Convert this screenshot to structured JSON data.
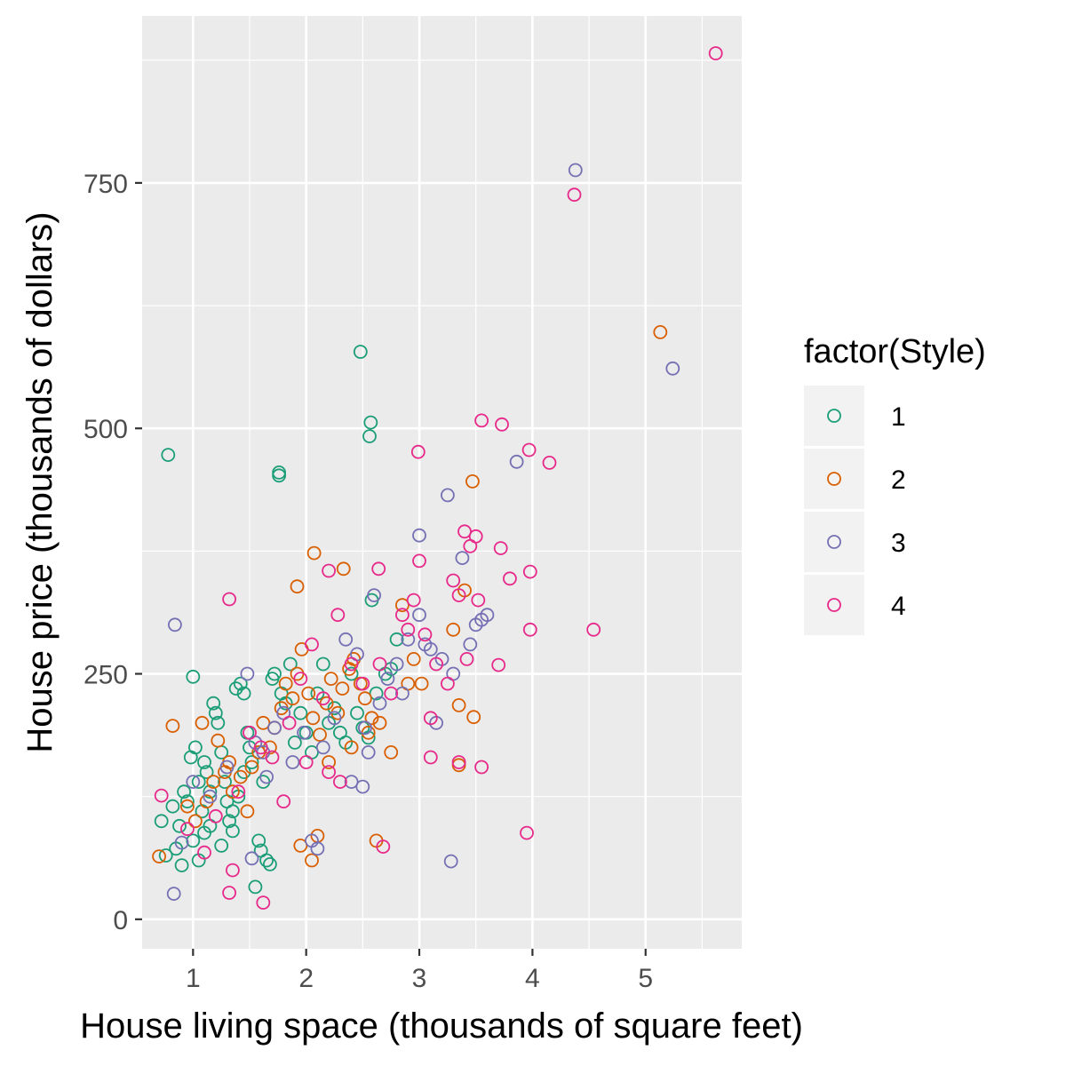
{
  "chart_data": {
    "type": "scatter",
    "xlabel": "House living space (thousands of square feet)",
    "ylabel": "House price (thousands of dollars)",
    "xlim": [
      0.55,
      5.85
    ],
    "ylim": [
      -30,
      920
    ],
    "x_ticks": [
      1,
      2,
      3,
      4,
      5
    ],
    "y_ticks": [
      0,
      250,
      500,
      750
    ],
    "grid": true,
    "legend": {
      "title": "factor(Style)",
      "position": "right"
    },
    "series": [
      {
        "name": "1",
        "color": "#1b9e77",
        "points": [
          [
            0.78,
            473
          ],
          [
            2.48,
            578
          ],
          [
            2.57,
            506
          ],
          [
            2.56,
            492
          ],
          [
            1.76,
            455
          ],
          [
            1.76,
            452
          ],
          [
            1.0,
            247
          ],
          [
            0.72,
            100
          ],
          [
            0.76,
            65
          ],
          [
            0.82,
            115
          ],
          [
            0.88,
            95
          ],
          [
            0.92,
            130
          ],
          [
            0.95,
            120
          ],
          [
            0.98,
            165
          ],
          [
            1.02,
            175
          ],
          [
            1.05,
            140
          ],
          [
            1.08,
            110
          ],
          [
            1.1,
            160
          ],
          [
            1.12,
            150
          ],
          [
            1.15,
            130
          ],
          [
            1.18,
            220
          ],
          [
            1.2,
            210
          ],
          [
            1.22,
            200
          ],
          [
            1.25,
            170
          ],
          [
            1.28,
            140
          ],
          [
            1.3,
            120
          ],
          [
            1.32,
            100
          ],
          [
            1.35,
            90
          ],
          [
            1.38,
            235
          ],
          [
            1.42,
            240
          ],
          [
            1.45,
            230
          ],
          [
            1.48,
            190
          ],
          [
            1.5,
            175
          ],
          [
            1.52,
            160
          ],
          [
            1.55,
            33
          ],
          [
            1.58,
            80
          ],
          [
            1.6,
            70
          ],
          [
            1.62,
            140
          ],
          [
            1.65,
            60
          ],
          [
            1.68,
            56
          ],
          [
            1.7,
            245
          ],
          [
            1.72,
            250
          ],
          [
            1.78,
            230
          ],
          [
            1.82,
            220
          ],
          [
            1.86,
            260
          ],
          [
            1.9,
            180
          ],
          [
            1.95,
            210
          ],
          [
            2.0,
            190
          ],
          [
            2.05,
            170
          ],
          [
            2.1,
            230
          ],
          [
            2.15,
            260
          ],
          [
            2.2,
            200
          ],
          [
            2.25,
            215
          ],
          [
            2.3,
            190
          ],
          [
            2.35,
            180
          ],
          [
            2.4,
            250
          ],
          [
            2.45,
            210
          ],
          [
            2.5,
            195
          ],
          [
            2.55,
            185
          ],
          [
            2.58,
            325
          ],
          [
            2.62,
            230
          ],
          [
            2.7,
            250
          ],
          [
            2.75,
            255
          ],
          [
            2.8,
            285
          ],
          [
            0.85,
            72
          ],
          [
            0.9,
            55
          ],
          [
            1.0,
            80
          ],
          [
            1.05,
            60
          ],
          [
            1.1,
            88
          ],
          [
            1.15,
            95
          ],
          [
            1.25,
            75
          ],
          [
            1.35,
            110
          ],
          [
            1.4,
            125
          ],
          [
            1.45,
            150
          ]
        ]
      },
      {
        "name": "2",
        "color": "#d95f02",
        "points": [
          [
            5.13,
            598
          ],
          [
            3.47,
            446
          ],
          [
            2.07,
            373
          ],
          [
            2.33,
            357
          ],
          [
            1.92,
            339
          ],
          [
            0.82,
            197
          ],
          [
            0.7,
            64
          ],
          [
            0.95,
            115
          ],
          [
            1.02,
            100
          ],
          [
            1.08,
            200
          ],
          [
            1.12,
            120
          ],
          [
            1.18,
            140
          ],
          [
            1.22,
            182
          ],
          [
            1.28,
            150
          ],
          [
            1.32,
            160
          ],
          [
            1.35,
            130
          ],
          [
            1.42,
            145
          ],
          [
            1.48,
            110
          ],
          [
            1.52,
            155
          ],
          [
            1.58,
            170
          ],
          [
            1.62,
            200
          ],
          [
            1.68,
            175
          ],
          [
            1.72,
            195
          ],
          [
            1.78,
            215
          ],
          [
            1.82,
            240
          ],
          [
            1.88,
            225
          ],
          [
            1.92,
            250
          ],
          [
            1.96,
            275
          ],
          [
            2.02,
            230
          ],
          [
            2.06,
            205
          ],
          [
            2.12,
            188
          ],
          [
            2.18,
            220
          ],
          [
            2.22,
            245
          ],
          [
            2.28,
            210
          ],
          [
            2.32,
            235
          ],
          [
            2.38,
            255
          ],
          [
            2.42,
            265
          ],
          [
            2.48,
            240
          ],
          [
            2.52,
            225
          ],
          [
            2.58,
            205
          ],
          [
            2.62,
            80
          ],
          [
            2.1,
            85
          ],
          [
            2.05,
            60
          ],
          [
            1.95,
            75
          ],
          [
            2.75,
            170
          ],
          [
            2.9,
            240
          ],
          [
            3.02,
            240
          ],
          [
            3.35,
            218
          ],
          [
            3.35,
            157
          ],
          [
            3.48,
            206
          ],
          [
            3.3,
            295
          ],
          [
            3.4,
            335
          ],
          [
            2.95,
            265
          ],
          [
            2.85,
            320
          ],
          [
            2.2,
            160
          ],
          [
            2.4,
            175
          ],
          [
            2.55,
            190
          ],
          [
            2.65,
            200
          ]
        ]
      },
      {
        "name": "3",
        "color": "#7570b3",
        "points": [
          [
            4.38,
            763
          ],
          [
            5.24,
            561
          ],
          [
            3.86,
            466
          ],
          [
            3.25,
            432
          ],
          [
            3.0,
            391
          ],
          [
            0.84,
            300
          ],
          [
            3.28,
            59
          ],
          [
            0.83,
            26
          ],
          [
            0.9,
            78
          ],
          [
            1.0,
            140
          ],
          [
            1.15,
            125
          ],
          [
            1.3,
            155
          ],
          [
            1.48,
            250
          ],
          [
            1.55,
            180
          ],
          [
            1.62,
            170
          ],
          [
            1.72,
            195
          ],
          [
            1.8,
            210
          ],
          [
            1.88,
            160
          ],
          [
            1.98,
            190
          ],
          [
            2.05,
            80
          ],
          [
            2.1,
            72
          ],
          [
            2.15,
            175
          ],
          [
            2.25,
            205
          ],
          [
            2.35,
            285
          ],
          [
            2.45,
            270
          ],
          [
            2.52,
            195
          ],
          [
            2.55,
            170
          ],
          [
            2.6,
            330
          ],
          [
            2.65,
            220
          ],
          [
            2.72,
            245
          ],
          [
            2.8,
            260
          ],
          [
            2.85,
            230
          ],
          [
            2.9,
            285
          ],
          [
            3.0,
            310
          ],
          [
            3.05,
            280
          ],
          [
            3.1,
            275
          ],
          [
            3.15,
            200
          ],
          [
            3.2,
            265
          ],
          [
            3.3,
            250
          ],
          [
            3.38,
            368
          ],
          [
            3.45,
            280
          ],
          [
            3.5,
            300
          ],
          [
            3.55,
            305
          ],
          [
            3.6,
            310
          ],
          [
            2.4,
            140
          ],
          [
            2.5,
            135
          ],
          [
            1.52,
            62
          ],
          [
            1.65,
            145
          ]
        ]
      },
      {
        "name": "4",
        "color": "#e7298a",
        "points": [
          [
            5.62,
            882
          ],
          [
            4.37,
            738
          ],
          [
            3.55,
            508
          ],
          [
            3.73,
            504
          ],
          [
            3.97,
            478
          ],
          [
            4.15,
            465
          ],
          [
            2.99,
            476
          ],
          [
            4.54,
            295
          ],
          [
            3.98,
            295
          ],
          [
            3.95,
            88
          ],
          [
            3.72,
            378
          ],
          [
            3.4,
            395
          ],
          [
            3.45,
            380
          ],
          [
            3.5,
            390
          ],
          [
            3.8,
            347
          ],
          [
            3.98,
            354
          ],
          [
            1.32,
            326
          ],
          [
            2.64,
            357
          ],
          [
            2.2,
            355
          ],
          [
            3.1,
            165
          ],
          [
            3.35,
            160
          ],
          [
            3.55,
            155
          ],
          [
            3.1,
            205
          ],
          [
            3.7,
            259
          ],
          [
            2.68,
            74
          ],
          [
            1.62,
            17
          ],
          [
            1.32,
            27
          ],
          [
            1.35,
            50
          ],
          [
            0.72,
            126
          ],
          [
            0.95,
            92
          ],
          [
            1.1,
            68
          ],
          [
            1.2,
            105
          ],
          [
            1.4,
            130
          ],
          [
            1.5,
            190
          ],
          [
            1.6,
            175
          ],
          [
            1.7,
            165
          ],
          [
            1.85,
            200
          ],
          [
            1.95,
            245
          ],
          [
            2.05,
            280
          ],
          [
            2.15,
            225
          ],
          [
            2.28,
            310
          ],
          [
            2.4,
            260
          ],
          [
            2.5,
            240
          ],
          [
            2.65,
            260
          ],
          [
            2.75,
            230
          ],
          [
            2.85,
            310
          ],
          [
            2.95,
            325
          ],
          [
            3.05,
            290
          ],
          [
            3.15,
            260
          ],
          [
            3.25,
            240
          ],
          [
            3.3,
            345
          ],
          [
            3.35,
            330
          ],
          [
            3.42,
            265
          ],
          [
            3.52,
            325
          ],
          [
            3.0,
            365
          ],
          [
            2.9,
            295
          ],
          [
            2.0,
            160
          ],
          [
            2.2,
            150
          ],
          [
            2.3,
            140
          ],
          [
            1.8,
            120
          ]
        ]
      }
    ]
  }
}
